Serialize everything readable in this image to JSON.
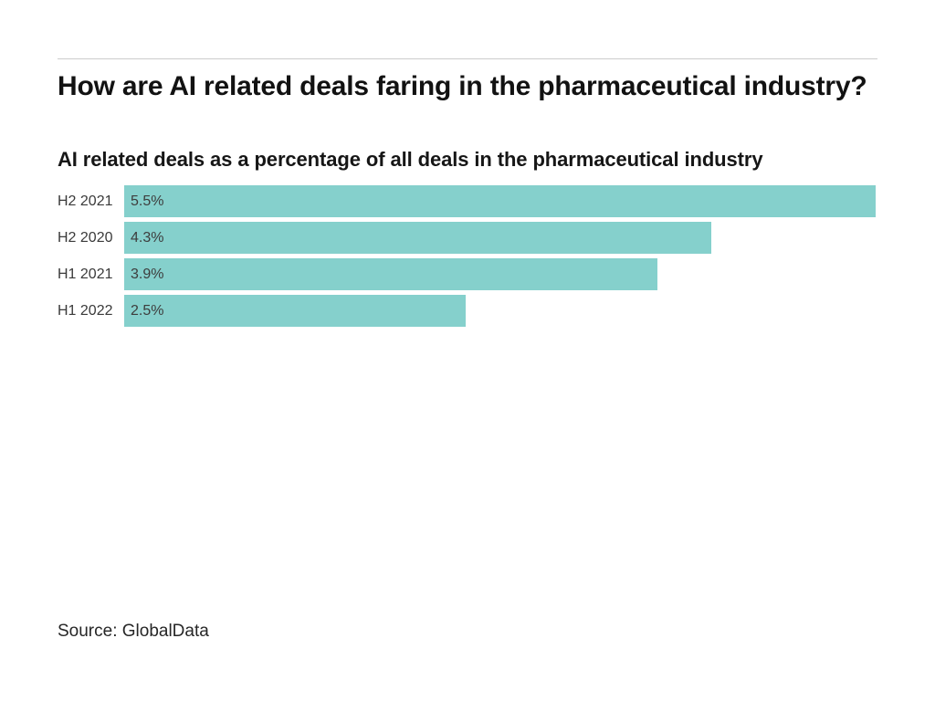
{
  "page": {
    "background": "#ffffff",
    "divider_color": "#cccccc"
  },
  "chart_data": {
    "type": "bar",
    "orientation": "horizontal",
    "title": "How are AI related deals faring in the pharmaceutical industry?",
    "subtitle": "AI related deals as a percentage of all deals in the pharmaceutical industry",
    "categories": [
      "H2 2021",
      "H2 2020",
      "H1 2021",
      "H1 2022"
    ],
    "values": [
      5.5,
      4.3,
      3.9,
      2.5
    ],
    "value_labels": [
      "5.5%",
      "4.3%",
      "3.9%",
      "2.5%"
    ],
    "xlim": [
      0,
      5.5
    ],
    "bar_color": "#85d0cc",
    "grid": false,
    "legend": false,
    "value_label_position": "inside-left",
    "axis_ticks": "none"
  },
  "footer": {
    "source_label": "Source: GlobalData"
  }
}
